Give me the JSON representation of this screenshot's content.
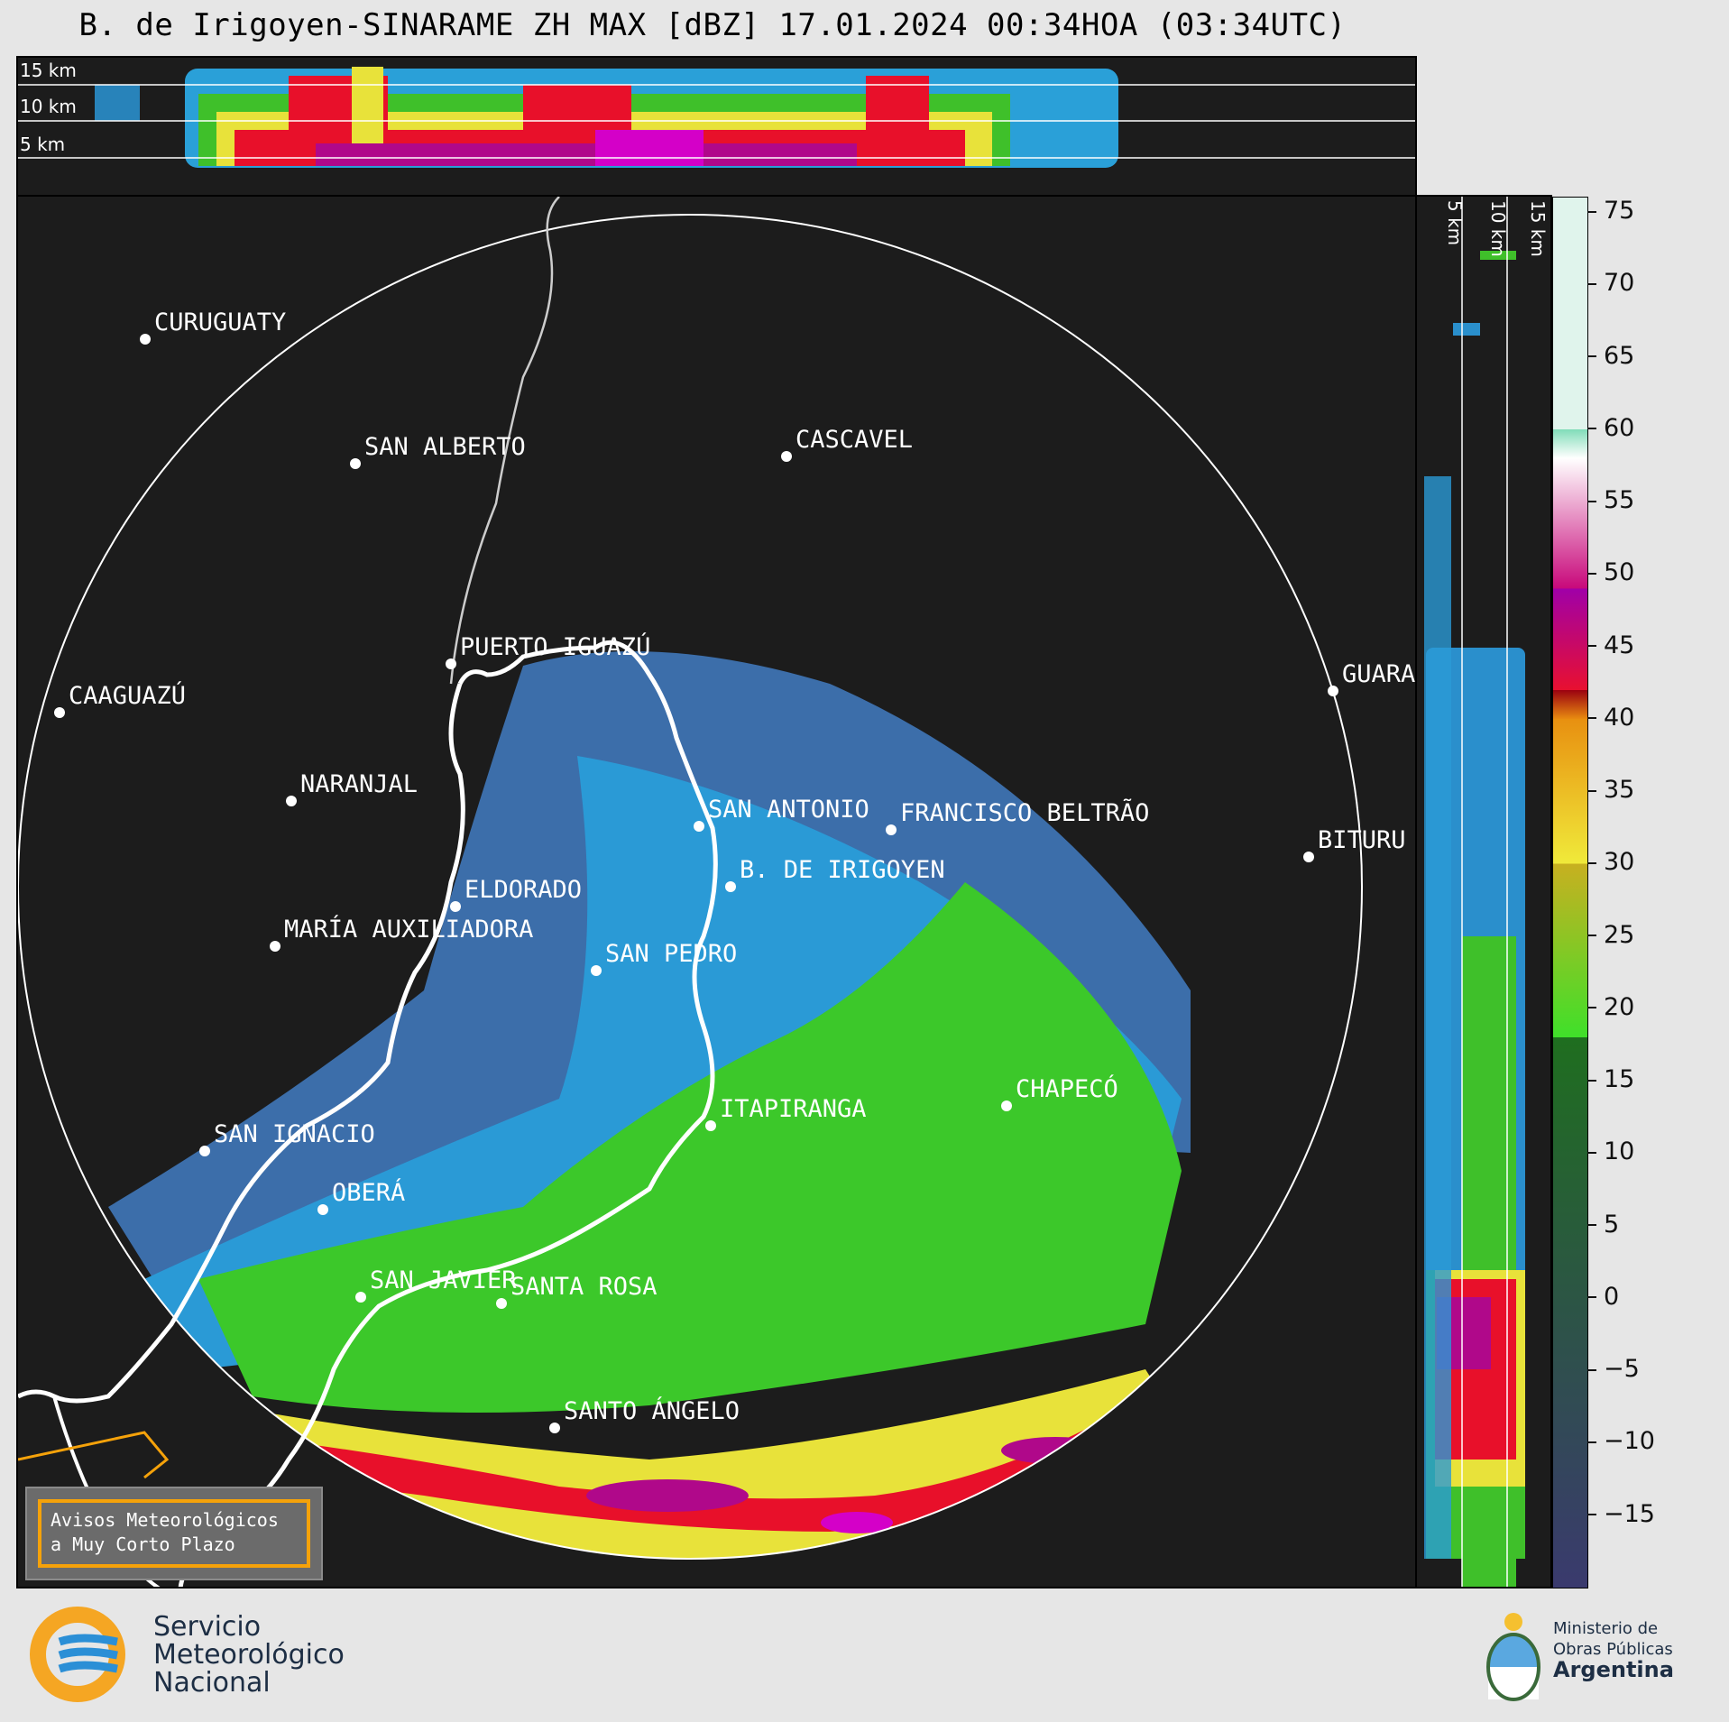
{
  "title": "B. de Irigoyen-SINARAME ZH MAX [dBZ] 17.01.2024 00:34HOA (03:34UTC)",
  "top_section": {
    "height_labels": [
      "15 km",
      "10 km",
      "5 km"
    ]
  },
  "side_section": {
    "height_labels": [
      "5 km",
      "10 km",
      "15 km"
    ]
  },
  "colorbar": {
    "ticks": [
      "75",
      "70",
      "65",
      "60",
      "55",
      "50",
      "45",
      "40",
      "35",
      "30",
      "25",
      "20",
      "15",
      "10",
      "5",
      "0",
      "−5",
      "−10",
      "−15"
    ],
    "min": -20,
    "max": 76,
    "bands": [
      {
        "from": -20,
        "to": 18,
        "color_low": "#3a3a6e",
        "color_high": "#2aa7dc"
      },
      {
        "from": 18,
        "to": 30,
        "color_low": "#3fe02a",
        "color_high": "#1f6e1f"
      },
      {
        "from": 30,
        "to": 40,
        "color_low": "#f0ea3a",
        "color_high": "#c8b020"
      },
      {
        "from": 40,
        "to": 42,
        "color_low": "#e88a10",
        "color_high": "#e89010"
      },
      {
        "from": 42,
        "to": 49,
        "color_low": "#e81030",
        "color_high": "#9a0010"
      },
      {
        "from": 49,
        "to": 58,
        "color_low": "#c8087a",
        "color_high": "#a000a8"
      },
      {
        "from": 58,
        "to": 60,
        "color_low": "#ffffff",
        "color_high": "#ffffff"
      },
      {
        "from": 60,
        "to": 76,
        "color_low": "#e0f4ec",
        "color_high": "#80dcb8"
      }
    ]
  },
  "cities": [
    {
      "name": "CURUGUATY",
      "type": "city"
    },
    {
      "name": "SAN ALBERTO",
      "type": "city"
    },
    {
      "name": "CASCAVEL",
      "type": "city"
    },
    {
      "name": "CAAGUAZÚ",
      "type": "city"
    },
    {
      "name": "GUARA",
      "type": "city"
    },
    {
      "name": "PUERTO IGUAZÚ",
      "type": "city"
    },
    {
      "name": "NARANJAL",
      "type": "city"
    },
    {
      "name": "SAN ANTONIO",
      "type": "city"
    },
    {
      "name": "FRANCISCO BELTRÃO",
      "type": "city"
    },
    {
      "name": "BITURU",
      "type": "city"
    },
    {
      "name": "B. DE IRIGOYEN",
      "type": "radar"
    },
    {
      "name": "ELDORADO",
      "type": "city"
    },
    {
      "name": "MARÍA AUXILIADORA",
      "type": "city"
    },
    {
      "name": "SAN PEDRO",
      "type": "city"
    },
    {
      "name": "CHAPECÓ",
      "type": "city"
    },
    {
      "name": "ITAPIRANGA",
      "type": "city"
    },
    {
      "name": "SAN IGNACIO",
      "type": "city"
    },
    {
      "name": "OBERÁ",
      "type": "city"
    },
    {
      "name": "SAN JAVIER",
      "type": "city"
    },
    {
      "name": "SANTA ROSA",
      "type": "city"
    },
    {
      "name": "SANTO ÁNGELO",
      "type": "city"
    }
  ],
  "warning_box": {
    "line1": "Avisos Meteorológicos",
    "line2": "a Muy Corto Plazo"
  },
  "logo_smn": {
    "line1": "Servicio",
    "line2": "Meteorológico",
    "line3": "Nacional",
    "colors": {
      "ring": "#f5a623",
      "waves": "#2b8fd6"
    }
  },
  "logo_ministerio": {
    "line1": "Ministerio de",
    "line2": "Obras Públicas",
    "line3": "Argentina"
  }
}
